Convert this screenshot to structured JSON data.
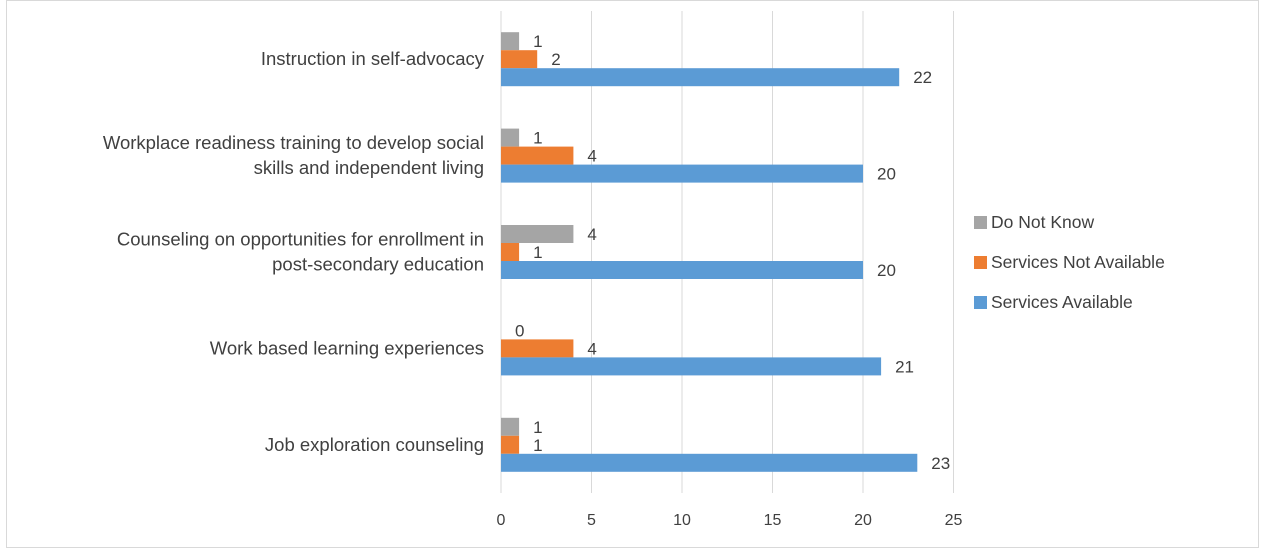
{
  "chart_data": {
    "type": "bar",
    "orientation": "horizontal",
    "title": "",
    "xlabel": "",
    "ylabel": "",
    "xlim": [
      0,
      25
    ],
    "x_ticks": [
      0,
      5,
      10,
      15,
      20,
      25
    ],
    "grid": "vertical",
    "legend_position": "right",
    "categories": [
      "Instruction in self-advocacy",
      "Workplace readiness training to develop social skills and independent living",
      "Counseling on opportunities for enrollment in post-secondary education",
      "Work based learning experiences",
      "Job exploration counseling"
    ],
    "category_label_lines": [
      [
        "Instruction in self-advocacy"
      ],
      [
        "Workplace readiness training to develop social",
        "skills and independent living"
      ],
      [
        "Counseling on opportunities for enrollment in",
        "post-secondary education"
      ],
      [
        "Work based learning experiences"
      ],
      [
        "Job exploration counseling"
      ]
    ],
    "series": [
      {
        "name": "Do Not Know",
        "color": "#a5a5a5",
        "values": [
          1,
          1,
          4,
          0,
          1
        ]
      },
      {
        "name": "Services Not Available",
        "color": "#ed7d31",
        "values": [
          2,
          4,
          1,
          4,
          1
        ]
      },
      {
        "name": "Services Available",
        "color": "#5b9bd5",
        "values": [
          22,
          20,
          20,
          21,
          23
        ]
      }
    ]
  }
}
